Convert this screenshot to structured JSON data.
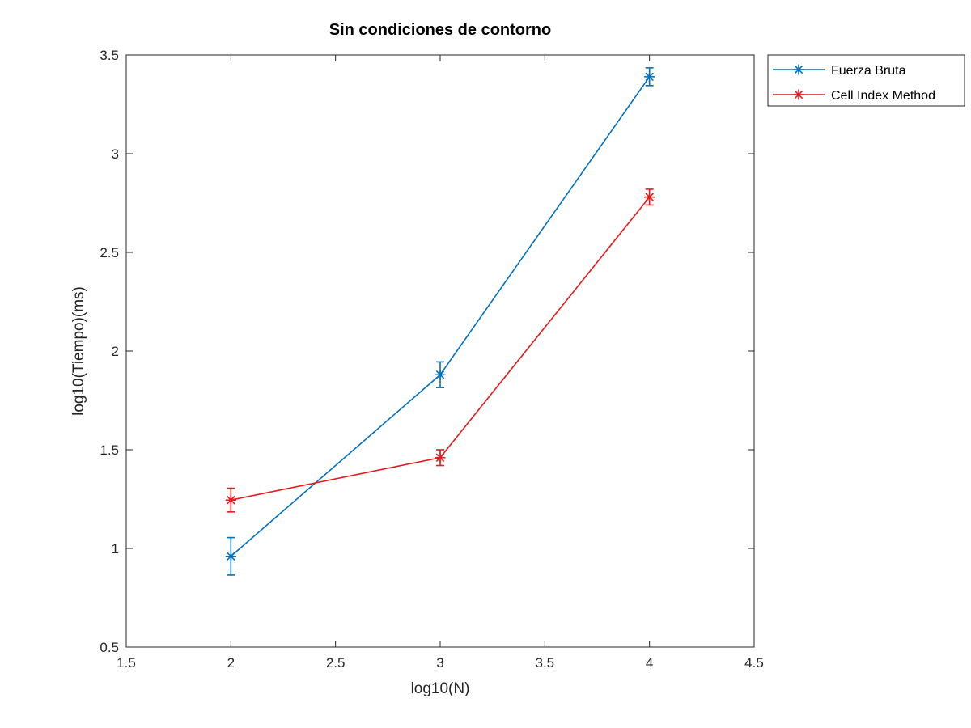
{
  "chart_data": {
    "type": "line",
    "title": "Sin condiciones de contorno",
    "xlabel": "log10(N)",
    "ylabel": "log10(Tiempo)(ms)",
    "xlim": [
      1.5,
      4.5
    ],
    "ylim": [
      0.5,
      3.5
    ],
    "xticks": [
      "1.5",
      "2",
      "2.5",
      "3",
      "3.5",
      "4",
      "4.5"
    ],
    "yticks": [
      "0.5",
      "1",
      "1.5",
      "2",
      "2.5",
      "3",
      "3.5"
    ],
    "grid": false,
    "legend_position": "outside-top-right",
    "series": [
      {
        "name": "Fuerza Bruta",
        "color": "#0072bd",
        "marker": "asterisk",
        "x": [
          2,
          3,
          4
        ],
        "y": [
          0.96,
          1.88,
          3.39
        ],
        "err": [
          0.095,
          0.065,
          0.045
        ]
      },
      {
        "name": "Cell Index Method",
        "color": "#e41a1c",
        "marker": "asterisk",
        "x": [
          2,
          3,
          4
        ],
        "y": [
          1.245,
          1.46,
          2.78
        ],
        "err": [
          0.06,
          0.04,
          0.04
        ]
      }
    ]
  }
}
